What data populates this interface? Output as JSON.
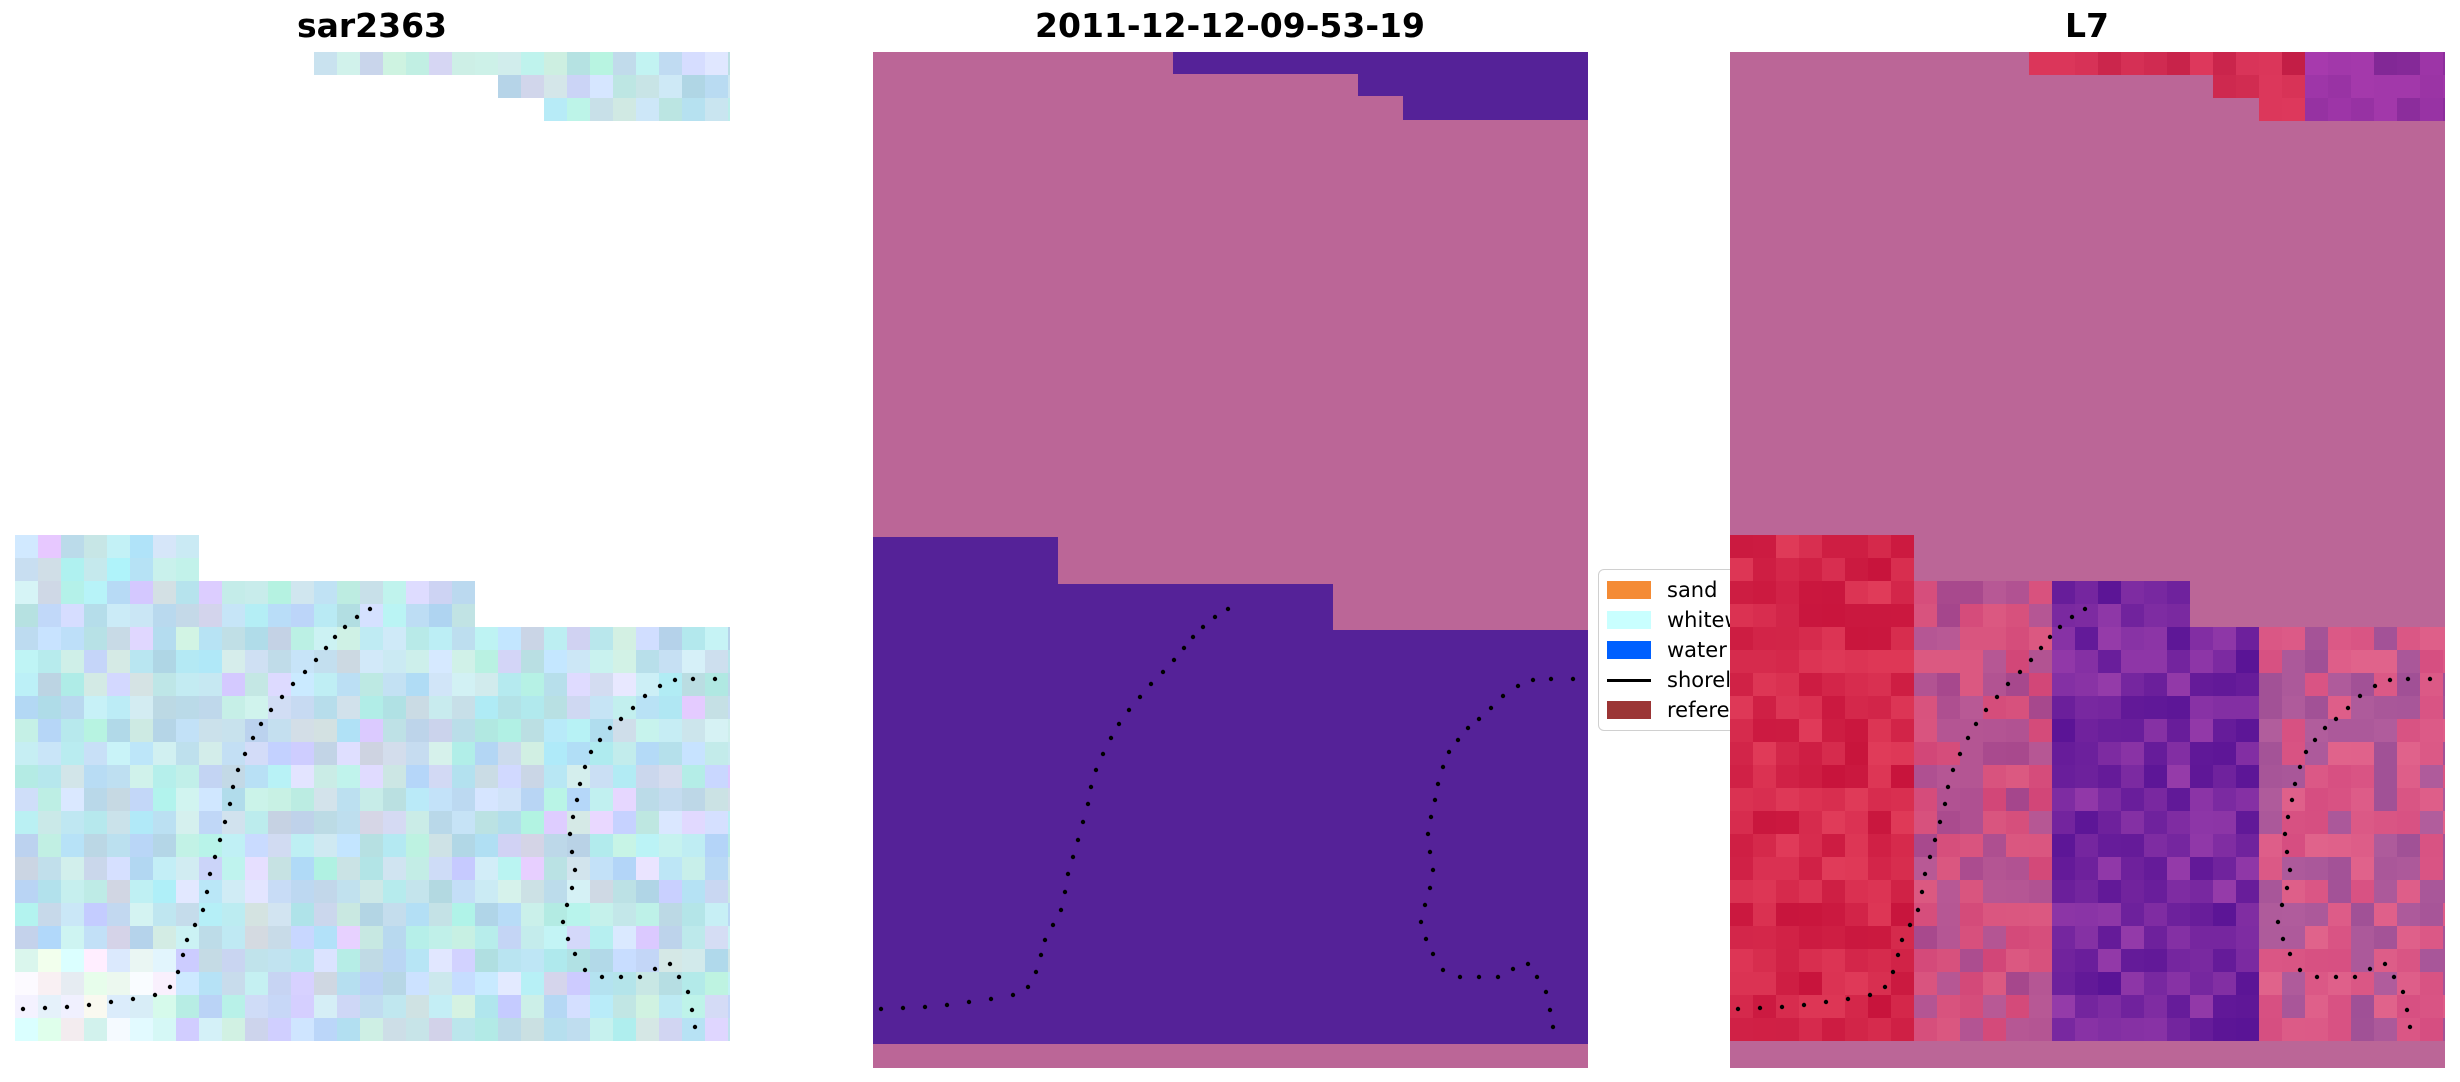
{
  "panels": [
    {
      "title": "sar2363"
    },
    {
      "title": "2011-12-12-09-53-19"
    },
    {
      "title": "L7"
    }
  ],
  "legend": {
    "items": [
      {
        "label": "sand",
        "color": "#f48b35",
        "kind": "patch"
      },
      {
        "label": "whitewater",
        "color": "#c9ffff",
        "kind": "patch"
      },
      {
        "label": "water",
        "color": "#0060ff",
        "kind": "patch"
      },
      {
        "label": "shoreline",
        "color": "#000000",
        "kind": "line"
      },
      {
        "label": "reference shoreline",
        "color": "#9b3535",
        "kind": "patch"
      }
    ]
  },
  "colors": {
    "classified_mask": "#bb6697",
    "classified_water": "#552298",
    "shoreline_dots": "#000000"
  }
}
